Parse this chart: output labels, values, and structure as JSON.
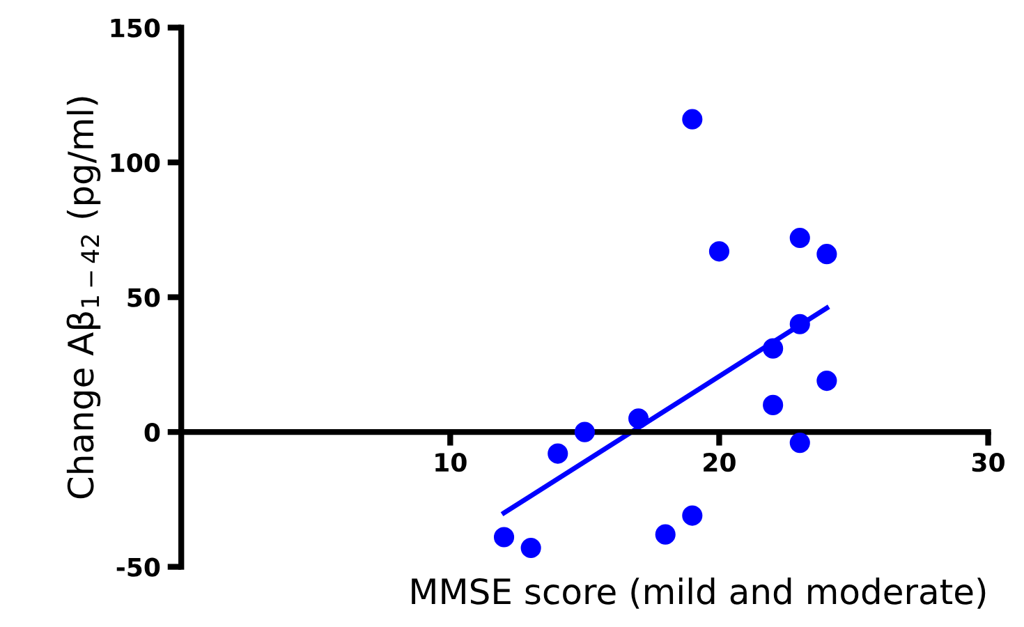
{
  "chart_data": {
    "type": "scatter",
    "xlabel": "MMSE score (mild and moderate)",
    "ylabel": "Change Aβ$_{1−42}$ (pg/ml)",
    "x": [
      12,
      13,
      14,
      15,
      17,
      18,
      19,
      19,
      20,
      22,
      22,
      23,
      23,
      23,
      24,
      24
    ],
    "series": [
      {
        "color": "#0000ff",
        "marker": "circle",
        "values": [
          -39,
          -43,
          -8,
          0,
          5,
          -38,
          -31,
          116,
          67,
          31,
          10,
          72,
          40,
          -4,
          66,
          19
        ]
      },
      {
        "type": "line",
        "color": "#0000ff",
        "x": [
          12,
          24
        ],
        "values": [
          -30,
          46
        ]
      }
    ],
    "xlim": [
      0,
      30
    ],
    "ylim": [
      -50,
      150
    ],
    "xticks": [
      10,
      20,
      30
    ],
    "yticks": [
      -50,
      0,
      50,
      100,
      150
    ],
    "grid": false,
    "legend": false
  }
}
